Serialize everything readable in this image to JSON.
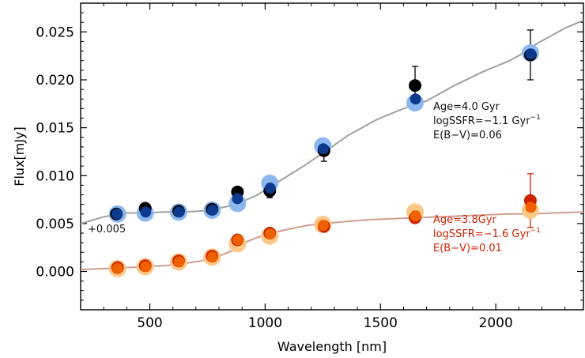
{
  "chart_data": {
    "type": "scatter",
    "title": "",
    "xlabel": "Wavelength [nm]",
    "ylabel": "Flux[mJy]",
    "xlim": [
      200,
      2380
    ],
    "ylim": [
      -0.004,
      0.028
    ],
    "x_ticks": [
      500,
      1000,
      1500,
      2000
    ],
    "x_tick_labels": [
      "500",
      "1000",
      "1500",
      "2000"
    ],
    "y_ticks": [
      0.0,
      0.005,
      0.01,
      0.015,
      0.02,
      0.025
    ],
    "y_tick_labels": [
      "0.000",
      "0.005",
      "0.010",
      "0.015",
      "0.020",
      "0.025"
    ],
    "grid": false,
    "legend": "none",
    "offset_label": "+0.005",
    "series": [
      {
        "kind": "line",
        "color": "#a0a0a0",
        "x": [
          200,
          300,
          400,
          480,
          560,
          640,
          720,
          780,
          840,
          900,
          960,
          1000,
          1060,
          1120,
          1180,
          1240,
          1300,
          1360,
          1420,
          1480,
          1540,
          1600,
          1650,
          1700,
          1760,
          1820,
          1880,
          1940,
          2000,
          2060,
          2120,
          2180,
          2240,
          2300,
          2380
        ],
        "y": [
          0.005,
          0.0057,
          0.0061,
          0.0061,
          0.0062,
          0.0062,
          0.0063,
          0.0065,
          0.0068,
          0.0073,
          0.0079,
          0.0085,
          0.0094,
          0.0103,
          0.0112,
          0.0122,
          0.0132,
          0.0142,
          0.015,
          0.0158,
          0.0164,
          0.017,
          0.0174,
          0.0178,
          0.0186,
          0.0194,
          0.0201,
          0.0208,
          0.0214,
          0.022,
          0.0228,
          0.0238,
          0.0246,
          0.0254,
          0.0262
        ]
      },
      {
        "kind": "line",
        "color": "#cf9e8f",
        "x": [
          200,
          300,
          400,
          480,
          560,
          640,
          720,
          800,
          860,
          900,
          960,
          1000,
          1060,
          1120,
          1180,
          1250,
          1350,
          1450,
          1550,
          1650,
          1750,
          1850,
          1950,
          2050,
          2150,
          2250,
          2380
        ],
        "y": [
          0.0002,
          0.0003,
          0.0004,
          0.0005,
          0.0006,
          0.0008,
          0.0011,
          0.0016,
          0.0022,
          0.0029,
          0.0035,
          0.0038,
          0.0042,
          0.0045,
          0.0048,
          0.005,
          0.0052,
          0.0054,
          0.0055,
          0.0056,
          0.0057,
          0.0058,
          0.0059,
          0.006,
          0.006,
          0.0061,
          0.0062
        ]
      },
      {
        "kind": "points",
        "color": "#8ab8ee",
        "radius": 11,
        "x": [
          360,
          480,
          625,
          770,
          880,
          1020,
          1250,
          1650,
          2150
        ],
        "y": [
          0.006,
          0.0061,
          0.0062,
          0.0064,
          0.0071,
          0.0092,
          0.0131,
          0.0176,
          0.0228
        ]
      },
      {
        "kind": "points",
        "color": "#000000",
        "radius": 8,
        "x": [
          355,
          480,
          625,
          770,
          880,
          1020,
          1255,
          1650,
          2150
        ],
        "y": [
          0.006,
          0.0066,
          0.0063,
          0.0065,
          0.0083,
          0.0084,
          0.0126,
          0.0194,
          0.0226
        ],
        "err": [
          0,
          0,
          0,
          0,
          0,
          0.0007,
          0.0011,
          0.002,
          0.0026
        ]
      },
      {
        "kind": "points",
        "color": "#0d3a8c",
        "radius": 7,
        "x": [
          358,
          482,
          627,
          772,
          880,
          1022,
          1252,
          1652,
          2152
        ],
        "y": [
          0.006,
          0.0062,
          0.0062,
          0.0064,
          0.0076,
          0.0087,
          0.0128,
          0.018,
          0.0227
        ]
      },
      {
        "kind": "points",
        "color": "#fbc887",
        "radius": 11,
        "x": [
          360,
          480,
          625,
          770,
          880,
          1020,
          1250,
          1650,
          2150
        ],
        "y": [
          0.0003,
          0.0005,
          0.001,
          0.0015,
          0.0029,
          0.0037,
          0.0049,
          0.0062,
          0.0064
        ]
      },
      {
        "kind": "points",
        "color": "#cc2200",
        "radius": 8,
        "x": [
          360,
          480,
          625,
          770,
          880,
          1020,
          1255,
          1650,
          2150
        ],
        "y": [
          0.0004,
          0.0006,
          0.0011,
          0.0016,
          0.0033,
          0.004,
          0.0047,
          0.0056,
          0.0074
        ],
        "err": [
          0,
          0,
          0,
          0,
          0,
          0,
          0.0006,
          0.0005,
          0.0028
        ]
      },
      {
        "kind": "points",
        "color": "#ee6000",
        "radius": 7,
        "x": [
          360,
          482,
          627,
          772,
          882,
          1022,
          1252,
          1652,
          2152
        ],
        "y": [
          0.0003,
          0.0005,
          0.001,
          0.0015,
          0.0033,
          0.0039,
          0.0048,
          0.0058,
          0.0067
        ]
      }
    ],
    "annotations": [
      {
        "color": "#111111",
        "lines": [
          {
            "base": "Age=4.0 Gyr",
            "sup": ""
          },
          {
            "base": "logSSFR=−1.1 Gyr",
            "sup": "−1"
          },
          {
            "base": "E(B−V)=0.06",
            "sup": ""
          }
        ]
      },
      {
        "color": "#cc2200",
        "lines": [
          {
            "base": "Age=3.8Gyr",
            "sup": ""
          },
          {
            "base": "logSSFR=−1.6 Gyr",
            "sup": "−1"
          },
          {
            "base": "E(B−V)=0.01",
            "sup": ""
          }
        ]
      }
    ]
  }
}
